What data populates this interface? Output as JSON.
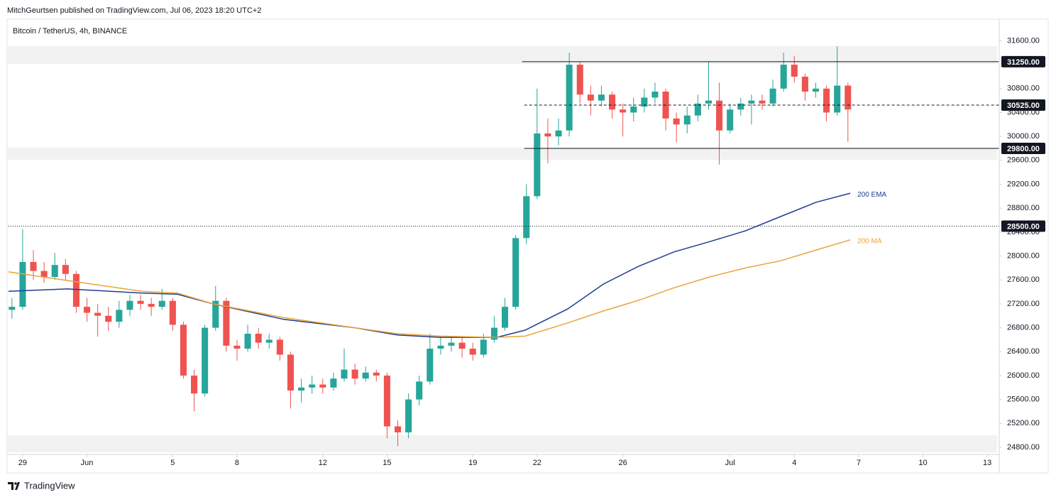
{
  "header": {
    "published": "MitchGeurtsen published on TradingView.com, Jul 06, 2023 18:20 UTC+2"
  },
  "footer": {
    "brand": "TradingView"
  },
  "chart_data": {
    "type": "candlestick",
    "title": "Bitcoin / TetherUS, 4h, BINANCE",
    "up_color": "#26a69a",
    "down_color": "#ef5350",
    "x": [
      -0.5,
      0,
      0.5,
      1,
      1.5,
      2,
      2.5,
      3,
      3.5,
      4,
      4.5,
      5,
      5.5,
      6,
      6.5,
      7,
      7.5,
      8,
      8.5,
      9,
      9.5,
      10,
      10.5,
      11,
      11.5,
      12,
      12.5,
      13,
      13.5,
      14,
      14.5,
      15,
      15.5,
      16,
      16.5,
      17,
      17.5,
      18,
      18.5,
      19,
      19.5,
      20,
      20.5,
      21,
      21.5,
      22,
      22.5,
      23,
      23.5,
      24,
      24.5,
      25,
      25.5,
      26,
      26.5,
      27,
      27.5,
      28,
      28.5,
      29,
      29.5,
      30,
      30.5,
      31,
      31.5,
      32,
      32.5,
      33,
      33.5,
      34,
      34.5,
      35,
      35.5,
      36,
      36.5,
      37,
      37.5,
      38,
      38.5
    ],
    "open": [
      27100,
      27150,
      27900,
      27750,
      27650,
      27850,
      27700,
      27150,
      27050,
      27000,
      26900,
      27100,
      27250,
      27200,
      27150,
      27250,
      26850,
      26000,
      25700,
      26800,
      27250,
      26500,
      26450,
      26700,
      26550,
      26600,
      26350,
      25750,
      25800,
      25850,
      25800,
      25950,
      26100,
      25950,
      26050,
      26000,
      25150,
      25050,
      25600,
      25900,
      26450,
      26500,
      26550,
      26450,
      26350,
      26600,
      26800,
      27150,
      28300,
      29000,
      30050,
      30000,
      30100,
      31200,
      30700,
      30600,
      30700,
      30450,
      30400,
      30500,
      30650,
      30750,
      30300,
      30200,
      30350,
      30550,
      30600,
      30100,
      30450,
      30550,
      30600,
      30550,
      30800,
      31200,
      31000,
      30750,
      30800,
      30400,
      30850
    ],
    "high": [
      27300,
      28450,
      28100,
      27900,
      28050,
      27950,
      27750,
      27300,
      27200,
      27150,
      27250,
      27350,
      27350,
      27300,
      27450,
      27300,
      26900,
      26100,
      26850,
      27500,
      27300,
      26600,
      26850,
      26800,
      26700,
      26650,
      26400,
      25950,
      26000,
      25950,
      26050,
      26450,
      26200,
      26150,
      26100,
      26050,
      25250,
      25700,
      26000,
      26700,
      26650,
      26650,
      26650,
      26550,
      26700,
      27000,
      27300,
      28350,
      29200,
      30800,
      30300,
      30300,
      31400,
      31250,
      30850,
      30850,
      30750,
      30550,
      30650,
      30800,
      30900,
      30800,
      30400,
      30500,
      30700,
      31250,
      30900,
      30550,
      30650,
      30700,
      30700,
      30950,
      31400,
      31350,
      31050,
      30900,
      30850,
      31510,
      30900
    ],
    "low": [
      26950,
      27100,
      27600,
      27550,
      27600,
      27600,
      27050,
      26900,
      26650,
      26750,
      26800,
      27000,
      27100,
      27000,
      27100,
      26750,
      25950,
      25400,
      25650,
      26750,
      26400,
      26250,
      26400,
      26450,
      26450,
      26250,
      25450,
      25550,
      25700,
      25700,
      25750,
      25900,
      25850,
      25900,
      25900,
      24950,
      24820,
      24950,
      25500,
      25850,
      26350,
      26400,
      26300,
      26250,
      26300,
      26550,
      26750,
      27100,
      28200,
      28950,
      29550,
      29850,
      30000,
      30550,
      30350,
      30500,
      30300,
      30000,
      30250,
      30400,
      30550,
      30100,
      29900,
      30050,
      30250,
      30450,
      29530,
      30050,
      30350,
      30200,
      30450,
      30500,
      30750,
      30900,
      30600,
      30650,
      30250,
      30350,
      29910
    ],
    "close": [
      27150,
      27900,
      27750,
      27650,
      27850,
      27700,
      27150,
      27050,
      27000,
      26900,
      27100,
      27250,
      27200,
      27150,
      27250,
      26850,
      26000,
      25700,
      26800,
      27250,
      26500,
      26450,
      26700,
      26550,
      26600,
      26350,
      25750,
      25800,
      25850,
      25800,
      25950,
      26100,
      25950,
      26050,
      26000,
      25150,
      25050,
      25600,
      25900,
      26450,
      26500,
      26550,
      26450,
      26350,
      26600,
      26800,
      27150,
      28300,
      29000,
      30050,
      30000,
      30100,
      31200,
      30700,
      30600,
      30700,
      30450,
      30400,
      30500,
      30650,
      30750,
      30300,
      30200,
      30350,
      30550,
      30600,
      30100,
      30450,
      30550,
      30600,
      30550,
      30800,
      31200,
      31000,
      30750,
      30800,
      30400,
      30850,
      30450
    ],
    "overlays": [
      {
        "name": "200 EMA",
        "color": "#1e3d8f",
        "x": [
          -0.66,
          2.09,
          5.56,
          7.22,
          8.87,
          12.19,
          15.5,
          17.48,
          19.47,
          22.12,
          23.44,
          25.43,
          27.09,
          28.74,
          30.4,
          32.05,
          33.71,
          35.36,
          37.02,
          38.61
        ],
        "values": [
          27410,
          27450,
          27380,
          27360,
          27200,
          26940,
          26800,
          26680,
          26640,
          26640,
          26760,
          27115,
          27530,
          27830,
          28070,
          28240,
          28420,
          28660,
          28900,
          29050
        ]
      },
      {
        "name": "200 MA",
        "color": "#eba23c",
        "x": [
          -0.66,
          2.09,
          5.56,
          7.22,
          8.87,
          12.19,
          15.5,
          17.48,
          19.47,
          22.12,
          23.44,
          25.43,
          27.09,
          28.74,
          30.4,
          32.05,
          33.71,
          35.36,
          37.02,
          38.61
        ],
        "values": [
          27735,
          27590,
          27410,
          27380,
          27200,
          26970,
          26800,
          26700,
          26660,
          26640,
          26660,
          26880,
          27080,
          27260,
          27470,
          27650,
          27800,
          27920,
          28100,
          28270
        ]
      }
    ],
    "levels": [
      {
        "value": 31250,
        "label": "31250.00",
        "style": "solid",
        "start": 23.3
      },
      {
        "value": 30525,
        "label": "30525.00",
        "style": "dashed",
        "start": 23.4
      },
      {
        "value": 29800,
        "label": "29800.00",
        "style": "solid",
        "start": 23.4
      },
      {
        "value": 28500,
        "label": "28500.00",
        "style": "dotted",
        "start": -0.66
      }
    ],
    "zones": [
      [
        31210,
        31510
      ],
      [
        29610,
        29812
      ],
      [
        24717,
        25002
      ]
    ],
    "xlim": [
      -0.66,
      45.46
    ],
    "ylim": [
      24681,
      31902
    ],
    "xticks": [
      {
        "value": 0,
        "label": "29"
      },
      {
        "value": 3,
        "label": "Jun"
      },
      {
        "value": 7,
        "label": "5"
      },
      {
        "value": 10,
        "label": "8"
      },
      {
        "value": 14,
        "label": "12"
      },
      {
        "value": 17,
        "label": "15"
      },
      {
        "value": 21,
        "label": "19"
      },
      {
        "value": 24,
        "label": "22"
      },
      {
        "value": 28,
        "label": "26"
      },
      {
        "value": 33,
        "label": "Jul"
      },
      {
        "value": 36,
        "label": "4"
      },
      {
        "value": 39,
        "label": "7"
      },
      {
        "value": 42,
        "label": "10"
      },
      {
        "value": 45,
        "label": "13"
      }
    ],
    "yticks": [
      {
        "value": 24800,
        "label": "24800.00"
      },
      {
        "value": 25200,
        "label": "25200.00"
      },
      {
        "value": 25600,
        "label": "25600.00"
      },
      {
        "value": 26000,
        "label": "26000.00"
      },
      {
        "value": 26400,
        "label": "26400.00"
      },
      {
        "value": 26800,
        "label": "26800.00"
      },
      {
        "value": 27200,
        "label": "27200.00"
      },
      {
        "value": 27600,
        "label": "27600.00"
      },
      {
        "value": 28000,
        "label": "28000.00"
      },
      {
        "value": 28400,
        "label": "28400.00"
      },
      {
        "value": 28800,
        "label": "28800.00"
      },
      {
        "value": 29200,
        "label": "29200.00"
      },
      {
        "value": 29600,
        "label": "29600.00"
      },
      {
        "value": 30000,
        "label": "30000.00"
      },
      {
        "value": 30400,
        "label": "30400.00"
      },
      {
        "value": 30800,
        "label": "30800.00"
      },
      {
        "value": 31600,
        "label": "31600.00"
      }
    ]
  }
}
